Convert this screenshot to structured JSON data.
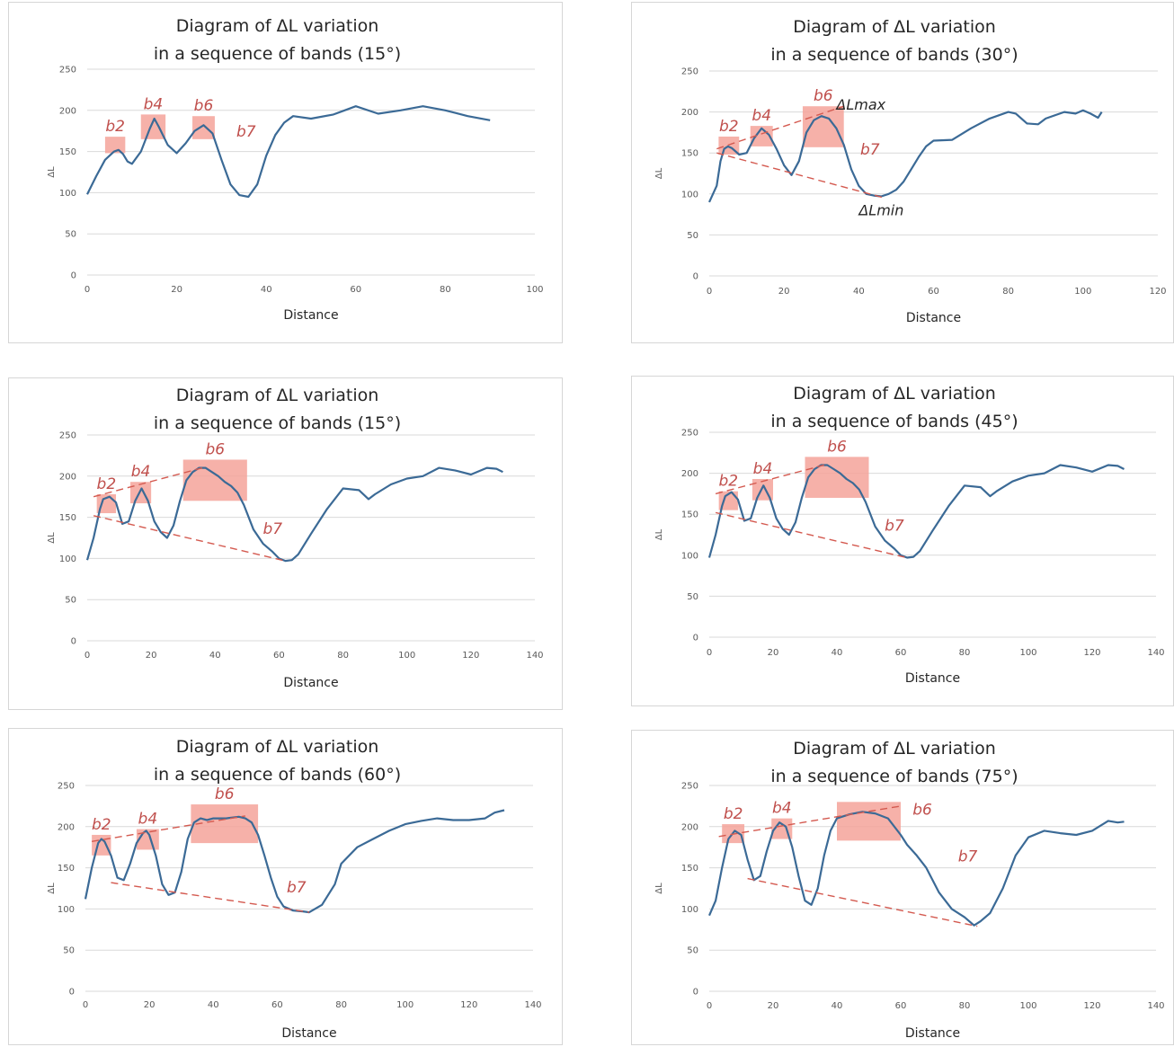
{
  "chart_data": [
    {
      "type": "line",
      "title": [
        "Diagram of ΔL variation",
        "in a sequence of bands (15°)"
      ],
      "xlabel": "Distance",
      "ylabel": "ΔL",
      "xlim": [
        0,
        100
      ],
      "ylim": [
        0,
        250
      ],
      "xticks": [
        "0",
        "20",
        "40",
        "60",
        "80",
        "100"
      ],
      "yticks": [
        "0",
        "50",
        "100",
        "150",
        "200",
        "250"
      ],
      "grid": true,
      "series": [
        {
          "x": [
            0,
            2,
            4,
            6,
            7,
            8,
            9,
            10,
            12,
            14,
            15,
            16,
            18,
            20,
            22,
            24,
            26,
            28,
            30,
            32,
            34,
            36,
            38,
            40,
            42,
            44,
            46,
            50,
            55,
            60,
            65,
            70,
            75,
            80,
            85,
            90
          ],
          "values": [
            98,
            120,
            140,
            150,
            152,
            147,
            138,
            135,
            150,
            178,
            190,
            180,
            158,
            148,
            160,
            175,
            182,
            172,
            140,
            110,
            97,
            95,
            110,
            145,
            170,
            185,
            193,
            190,
            195,
            205,
            196,
            200,
            205,
            200,
            193,
            188
          ]
        }
      ],
      "bands": [
        {
          "label": "b2",
          "x0": 4,
          "x1": 8.5,
          "y0": 148,
          "y1": 168
        },
        {
          "label": "b4",
          "x0": 12,
          "x1": 17.5,
          "y0": 165,
          "y1": 195
        },
        {
          "label": "b6",
          "x0": 23.5,
          "x1": 28.5,
          "y0": 165,
          "y1": 193
        },
        {
          "label": "b7",
          "x": 35.5,
          "y": 168
        }
      ],
      "envelope_lines": [],
      "annotations": []
    },
    {
      "type": "line",
      "title": [
        "Diagram of ΔL variation",
        "in a sequence of bands (30°)"
      ],
      "xlabel": "Distance",
      "ylabel": "ΔL",
      "xlim": [
        0,
        120
      ],
      "ylim": [
        0,
        250
      ],
      "xticks": [
        "0",
        "20",
        "40",
        "60",
        "80",
        "100",
        "120"
      ],
      "yticks": [
        "0",
        "50",
        "100",
        "150",
        "200",
        "250"
      ],
      "grid": true,
      "series": [
        {
          "x": [
            0,
            2,
            3,
            4,
            5,
            6,
            8,
            10,
            12,
            14,
            16,
            18,
            20,
            22,
            24,
            26,
            28,
            30,
            32,
            34,
            36,
            38,
            40,
            42,
            44,
            46,
            48,
            50,
            52,
            54,
            56,
            58,
            60,
            65,
            70,
            75,
            80,
            82,
            85,
            88,
            90,
            95,
            98,
            100,
            102,
            104,
            105
          ],
          "values": [
            90,
            110,
            140,
            155,
            158,
            156,
            148,
            150,
            168,
            180,
            172,
            155,
            135,
            123,
            140,
            175,
            190,
            195,
            192,
            180,
            160,
            130,
            110,
            100,
            98,
            97,
            100,
            105,
            115,
            130,
            145,
            158,
            165,
            166,
            180,
            192,
            200,
            198,
            186,
            185,
            192,
            200,
            198,
            202,
            198,
            193,
            200
          ]
        }
      ],
      "bands": [
        {
          "label": "b2",
          "x0": 2.5,
          "x1": 8,
          "y0": 148,
          "y1": 170
        },
        {
          "label": "b4",
          "x0": 11,
          "x1": 17,
          "y0": 158,
          "y1": 183
        },
        {
          "label": "b6",
          "x0": 25,
          "x1": 36,
          "y0": 157,
          "y1": 207
        },
        {
          "label": "b7",
          "x": 43,
          "y": 148
        }
      ],
      "envelope_lines": [
        {
          "x0": 2,
          "y0": 155,
          "x1": 36,
          "y1": 207
        },
        {
          "x0": 2,
          "y0": 150,
          "x1": 47,
          "y1": 95
        }
      ],
      "annotations": [
        {
          "text": "ΔLmax",
          "x": 34,
          "y": 203
        },
        {
          "text": "ΔLmin",
          "x": 40,
          "y": 74
        }
      ]
    },
    {
      "type": "line",
      "title": [
        "Diagram of ΔL variation",
        "in a sequence of bands (15°)"
      ],
      "xlabel": "Distance",
      "ylabel": "ΔL",
      "xlim": [
        0,
        140
      ],
      "ylim": [
        0,
        250
      ],
      "xticks": [
        "0",
        "20",
        "40",
        "60",
        "80",
        "100",
        "120",
        "140"
      ],
      "yticks": [
        "0",
        "50",
        "100",
        "150",
        "200",
        "250"
      ],
      "grid": true,
      "series": [
        {
          "x": [
            0,
            2,
            4,
            5,
            7,
            9,
            11,
            13,
            15,
            17,
            19,
            21,
            23,
            25,
            27,
            29,
            31,
            33,
            35,
            37,
            39,
            41,
            43,
            45,
            47,
            49,
            52,
            55,
            58,
            60,
            62,
            64,
            66,
            70,
            75,
            80,
            85,
            88,
            90,
            95,
            100,
            105,
            110,
            115,
            120,
            125,
            128,
            130
          ],
          "values": [
            98,
            125,
            160,
            172,
            175,
            168,
            142,
            145,
            170,
            185,
            170,
            145,
            132,
            125,
            140,
            170,
            195,
            205,
            210,
            210,
            205,
            200,
            193,
            188,
            180,
            165,
            135,
            118,
            108,
            100,
            97,
            98,
            105,
            130,
            160,
            185,
            183,
            172,
            178,
            190,
            197,
            200,
            210,
            207,
            202,
            210,
            209,
            205
          ]
        }
      ],
      "bands": [
        {
          "label": "b2",
          "x0": 3,
          "x1": 9,
          "y0": 155,
          "y1": 178
        },
        {
          "label": "b4",
          "x0": 13.5,
          "x1": 20,
          "y0": 167,
          "y1": 193
        },
        {
          "label": "b6",
          "x0": 30,
          "x1": 50,
          "y0": 170,
          "y1": 220
        },
        {
          "label": "b7",
          "x": 58,
          "y": 130
        }
      ],
      "envelope_lines": [
        {
          "x0": 2,
          "y0": 175,
          "x1": 36,
          "y1": 210
        },
        {
          "x0": 2,
          "y0": 152,
          "x1": 62,
          "y1": 97
        }
      ],
      "annotations": []
    },
    {
      "type": "line",
      "title": [
        "Diagram of ΔL variation",
        "in a sequence of bands (45°)"
      ],
      "xlabel": "Distance",
      "ylabel": "ΔL",
      "xlim": [
        0,
        140
      ],
      "ylim": [
        0,
        250
      ],
      "xticks": [
        "0",
        "20",
        "40",
        "60",
        "80",
        "100",
        "120",
        "140"
      ],
      "yticks": [
        "0",
        "50",
        "100",
        "150",
        "200",
        "250"
      ],
      "grid": true,
      "series": [
        {
          "x": [
            0,
            2,
            4,
            5,
            7,
            9,
            11,
            13,
            15,
            17,
            19,
            21,
            23,
            25,
            27,
            29,
            31,
            33,
            35,
            37,
            39,
            41,
            43,
            45,
            47,
            49,
            52,
            55,
            58,
            60,
            62,
            64,
            66,
            70,
            75,
            80,
            85,
            88,
            90,
            95,
            100,
            105,
            110,
            115,
            120,
            125,
            128,
            130
          ],
          "values": [
            97,
            125,
            160,
            172,
            177,
            168,
            142,
            145,
            170,
            185,
            170,
            145,
            132,
            125,
            140,
            170,
            195,
            205,
            210,
            210,
            205,
            200,
            193,
            188,
            180,
            165,
            135,
            118,
            108,
            100,
            97,
            98,
            105,
            130,
            160,
            185,
            183,
            172,
            178,
            190,
            197,
            200,
            210,
            207,
            202,
            210,
            209,
            205
          ]
        }
      ],
      "bands": [
        {
          "label": "b2",
          "x0": 3,
          "x1": 9,
          "y0": 155,
          "y1": 178
        },
        {
          "label": "b4",
          "x0": 13.5,
          "x1": 20,
          "y0": 167,
          "y1": 193
        },
        {
          "label": "b6",
          "x0": 30,
          "x1": 50,
          "y0": 170,
          "y1": 220
        },
        {
          "label": "b7",
          "x": 58,
          "y": 130
        }
      ],
      "envelope_lines": [
        {
          "x0": 2,
          "y0": 175,
          "x1": 36,
          "y1": 210
        },
        {
          "x0": 2,
          "y0": 152,
          "x1": 62,
          "y1": 97
        }
      ],
      "annotations": []
    },
    {
      "type": "line",
      "title": [
        "Diagram of ΔL variation",
        "in a sequence of bands (60°)"
      ],
      "xlabel": "Distance",
      "ylabel": "ΔL",
      "xlim": [
        0,
        140
      ],
      "ylim": [
        0,
        250
      ],
      "xticks": [
        "0",
        "20",
        "40",
        "60",
        "80",
        "100",
        "120",
        "140"
      ],
      "yticks": [
        "0",
        "50",
        "100",
        "150",
        "200",
        "250"
      ],
      "grid": true,
      "series": [
        {
          "x": [
            0,
            2,
            4,
            5,
            6,
            8,
            10,
            12,
            14,
            16,
            18,
            19,
            20,
            22,
            24,
            26,
            28,
            30,
            32,
            34,
            36,
            38,
            40,
            44,
            48,
            50,
            52,
            54,
            56,
            58,
            60,
            62,
            65,
            68,
            70,
            74,
            78,
            80,
            85,
            90,
            95,
            100,
            105,
            110,
            115,
            120,
            125,
            128,
            131
          ],
          "values": [
            112,
            150,
            180,
            185,
            182,
            165,
            138,
            135,
            155,
            180,
            192,
            195,
            190,
            165,
            130,
            117,
            120,
            145,
            185,
            205,
            210,
            208,
            210,
            210,
            212,
            210,
            205,
            190,
            165,
            138,
            115,
            103,
            98,
            97,
            96,
            105,
            130,
            155,
            175,
            185,
            195,
            203,
            207,
            210,
            208,
            208,
            210,
            217,
            220
          ]
        }
      ],
      "bands": [
        {
          "label": "b2",
          "x0": 2,
          "x1": 8,
          "y0": 165,
          "y1": 190
        },
        {
          "label": "b4",
          "x0": 16,
          "x1": 23,
          "y0": 172,
          "y1": 197
        },
        {
          "label": "b6",
          "x0": 33,
          "x1": 54,
          "y0": 180,
          "y1": 227
        },
        {
          "label": "b7",
          "x": 66,
          "y": 120
        }
      ],
      "envelope_lines": [
        {
          "x0": 2,
          "y0": 182,
          "x1": 50,
          "y1": 213
        },
        {
          "x0": 8,
          "y0": 132,
          "x1": 70,
          "y1": 96
        }
      ],
      "annotations": []
    },
    {
      "type": "line",
      "title": [
        "Diagram of ΔL variation",
        "in a sequence of bands (75°)"
      ],
      "xlabel": "Distance",
      "ylabel": "ΔL",
      "xlim": [
        0,
        140
      ],
      "ylim": [
        0,
        250
      ],
      "xticks": [
        "0",
        "20",
        "40",
        "60",
        "80",
        "100",
        "120",
        "140"
      ],
      "yticks": [
        "0",
        "50",
        "100",
        "150",
        "200",
        "250"
      ],
      "grid": true,
      "series": [
        {
          "x": [
            0,
            2,
            4,
            6,
            8,
            10,
            12,
            14,
            16,
            18,
            20,
            22,
            24,
            26,
            28,
            30,
            32,
            34,
            36,
            38,
            40,
            44,
            48,
            52,
            56,
            60,
            62,
            65,
            68,
            72,
            76,
            80,
            83,
            85,
            88,
            92,
            96,
            100,
            105,
            110,
            115,
            120,
            125,
            128,
            130
          ],
          "values": [
            92,
            110,
            150,
            185,
            195,
            190,
            160,
            135,
            140,
            170,
            195,
            205,
            200,
            175,
            140,
            110,
            105,
            125,
            165,
            195,
            210,
            215,
            218,
            216,
            210,
            190,
            178,
            165,
            150,
            120,
            100,
            90,
            80,
            85,
            95,
            125,
            165,
            187,
            195,
            192,
            190,
            195,
            207,
            205,
            206
          ]
        }
      ],
      "bands": [
        {
          "label": "b2",
          "x0": 4,
          "x1": 11,
          "y0": 180,
          "y1": 203
        },
        {
          "label": "b4",
          "x0": 19.5,
          "x1": 26,
          "y0": 185,
          "y1": 210
        },
        {
          "label": "b6",
          "x0": 40,
          "x1": 60,
          "y0": 183,
          "y1": 230
        },
        {
          "label": "b7",
          "x": 81,
          "y": 158
        }
      ],
      "envelope_lines": [
        {
          "x0": 3,
          "y0": 188,
          "x1": 60,
          "y1": 225
        },
        {
          "x0": 12,
          "y0": 137,
          "x1": 84,
          "y1": 79
        }
      ],
      "annotations": []
    }
  ]
}
